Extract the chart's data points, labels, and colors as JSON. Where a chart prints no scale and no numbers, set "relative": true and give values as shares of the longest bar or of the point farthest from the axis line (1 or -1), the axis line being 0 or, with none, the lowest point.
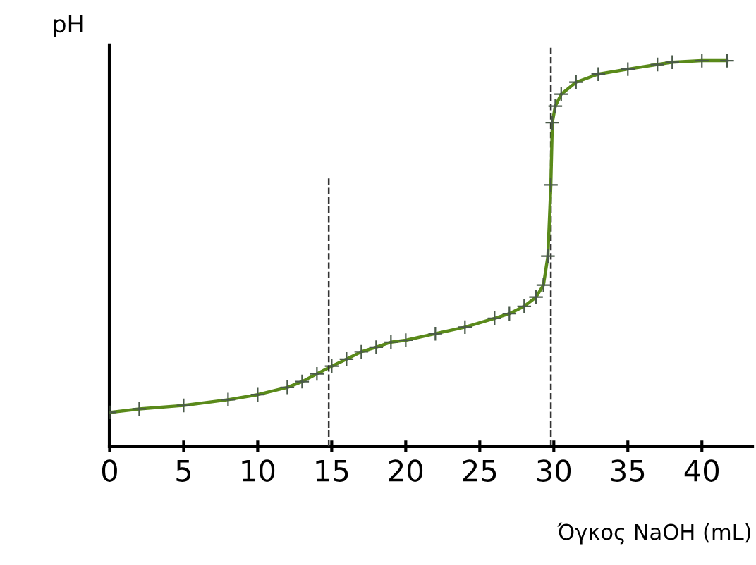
{
  "chart_data": {
    "type": "line",
    "relative": true,
    "ylabel": "pH",
    "xlabel": "Όγκος NaOH (mL)",
    "xlim": [
      0,
      43.4
    ],
    "xticks": [
      0,
      5,
      10,
      15,
      20,
      25,
      30,
      35,
      40
    ],
    "marker": "cross",
    "line_style": "solid",
    "grid": false,
    "series": [
      {
        "color": "#5a8a1a",
        "x": [
          0,
          2,
          5,
          8,
          10,
          12,
          13,
          14,
          15,
          16,
          17,
          18,
          19,
          20,
          22,
          24,
          26,
          27,
          28,
          28.8,
          29.3,
          29.6,
          29.8,
          29.9,
          30.1,
          30.5,
          31.5,
          33,
          35,
          37,
          38,
          40,
          41.7
        ],
        "values": [
          0.088,
          0.097,
          0.106,
          0.121,
          0.134,
          0.153,
          0.168,
          0.188,
          0.208,
          0.226,
          0.245,
          0.257,
          0.27,
          0.275,
          0.292,
          0.309,
          0.332,
          0.344,
          0.363,
          0.387,
          0.418,
          0.493,
          0.678,
          0.839,
          0.882,
          0.913,
          0.944,
          0.965,
          0.978,
          0.99,
          0.996,
          1.0,
          1.0
        ]
      },
      {
        "type": "line",
        "color": "#333333",
        "line_style": "dashed",
        "marker": "none",
        "x": [
          14.8,
          14.8
        ],
        "values": [
          0,
          0.697
        ]
      }
    ],
    "ref_lines": [
      {
        "axis": "x",
        "value": 29.8,
        "color": "#333333",
        "line_style": "dashed"
      }
    ]
  }
}
